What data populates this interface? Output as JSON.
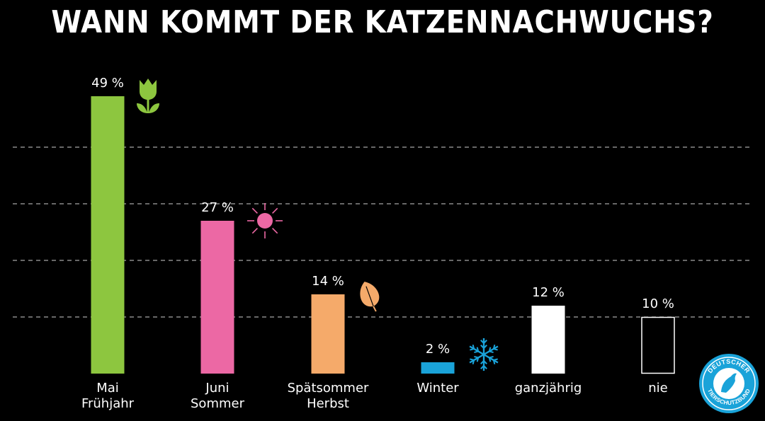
{
  "title": "WANN KOMMT DER KATZENNACHWUCHS?",
  "chart_data": {
    "type": "bar",
    "title": "WANN KOMMT DER KATZENNACHWUCHS?",
    "categories": [
      [
        "Mai",
        "Frühjahr"
      ],
      [
        "Juni",
        "Sommer"
      ],
      [
        "Spätsommer",
        "Herbst"
      ],
      [
        "Winter"
      ],
      [
        "ganzjährig"
      ],
      [
        "nie"
      ]
    ],
    "values": [
      49,
      27,
      14,
      2,
      12,
      10
    ],
    "value_labels": [
      "49 %",
      "27 %",
      "14 %",
      "2 %",
      "12 %",
      "10 %"
    ],
    "bar_colors": [
      "#8dc63f",
      "#ec68a4",
      "#f5aa6a",
      "#1aa3d9",
      "#ffffff",
      "none"
    ],
    "bar_icons": [
      "tulip-icon",
      "sun-icon",
      "leaf-icon",
      "snowflake-icon",
      "",
      ""
    ],
    "ylim": [
      0,
      49
    ],
    "grid": "dashed horizontal",
    "xlabel": "",
    "ylabel": ""
  },
  "logo": {
    "name": "deutscher-tierschutzbund-logo",
    "text_top": "DEUTSCHER",
    "text_bottom": "TIERSCHUTZBUND",
    "color": "#1aa3d9"
  }
}
